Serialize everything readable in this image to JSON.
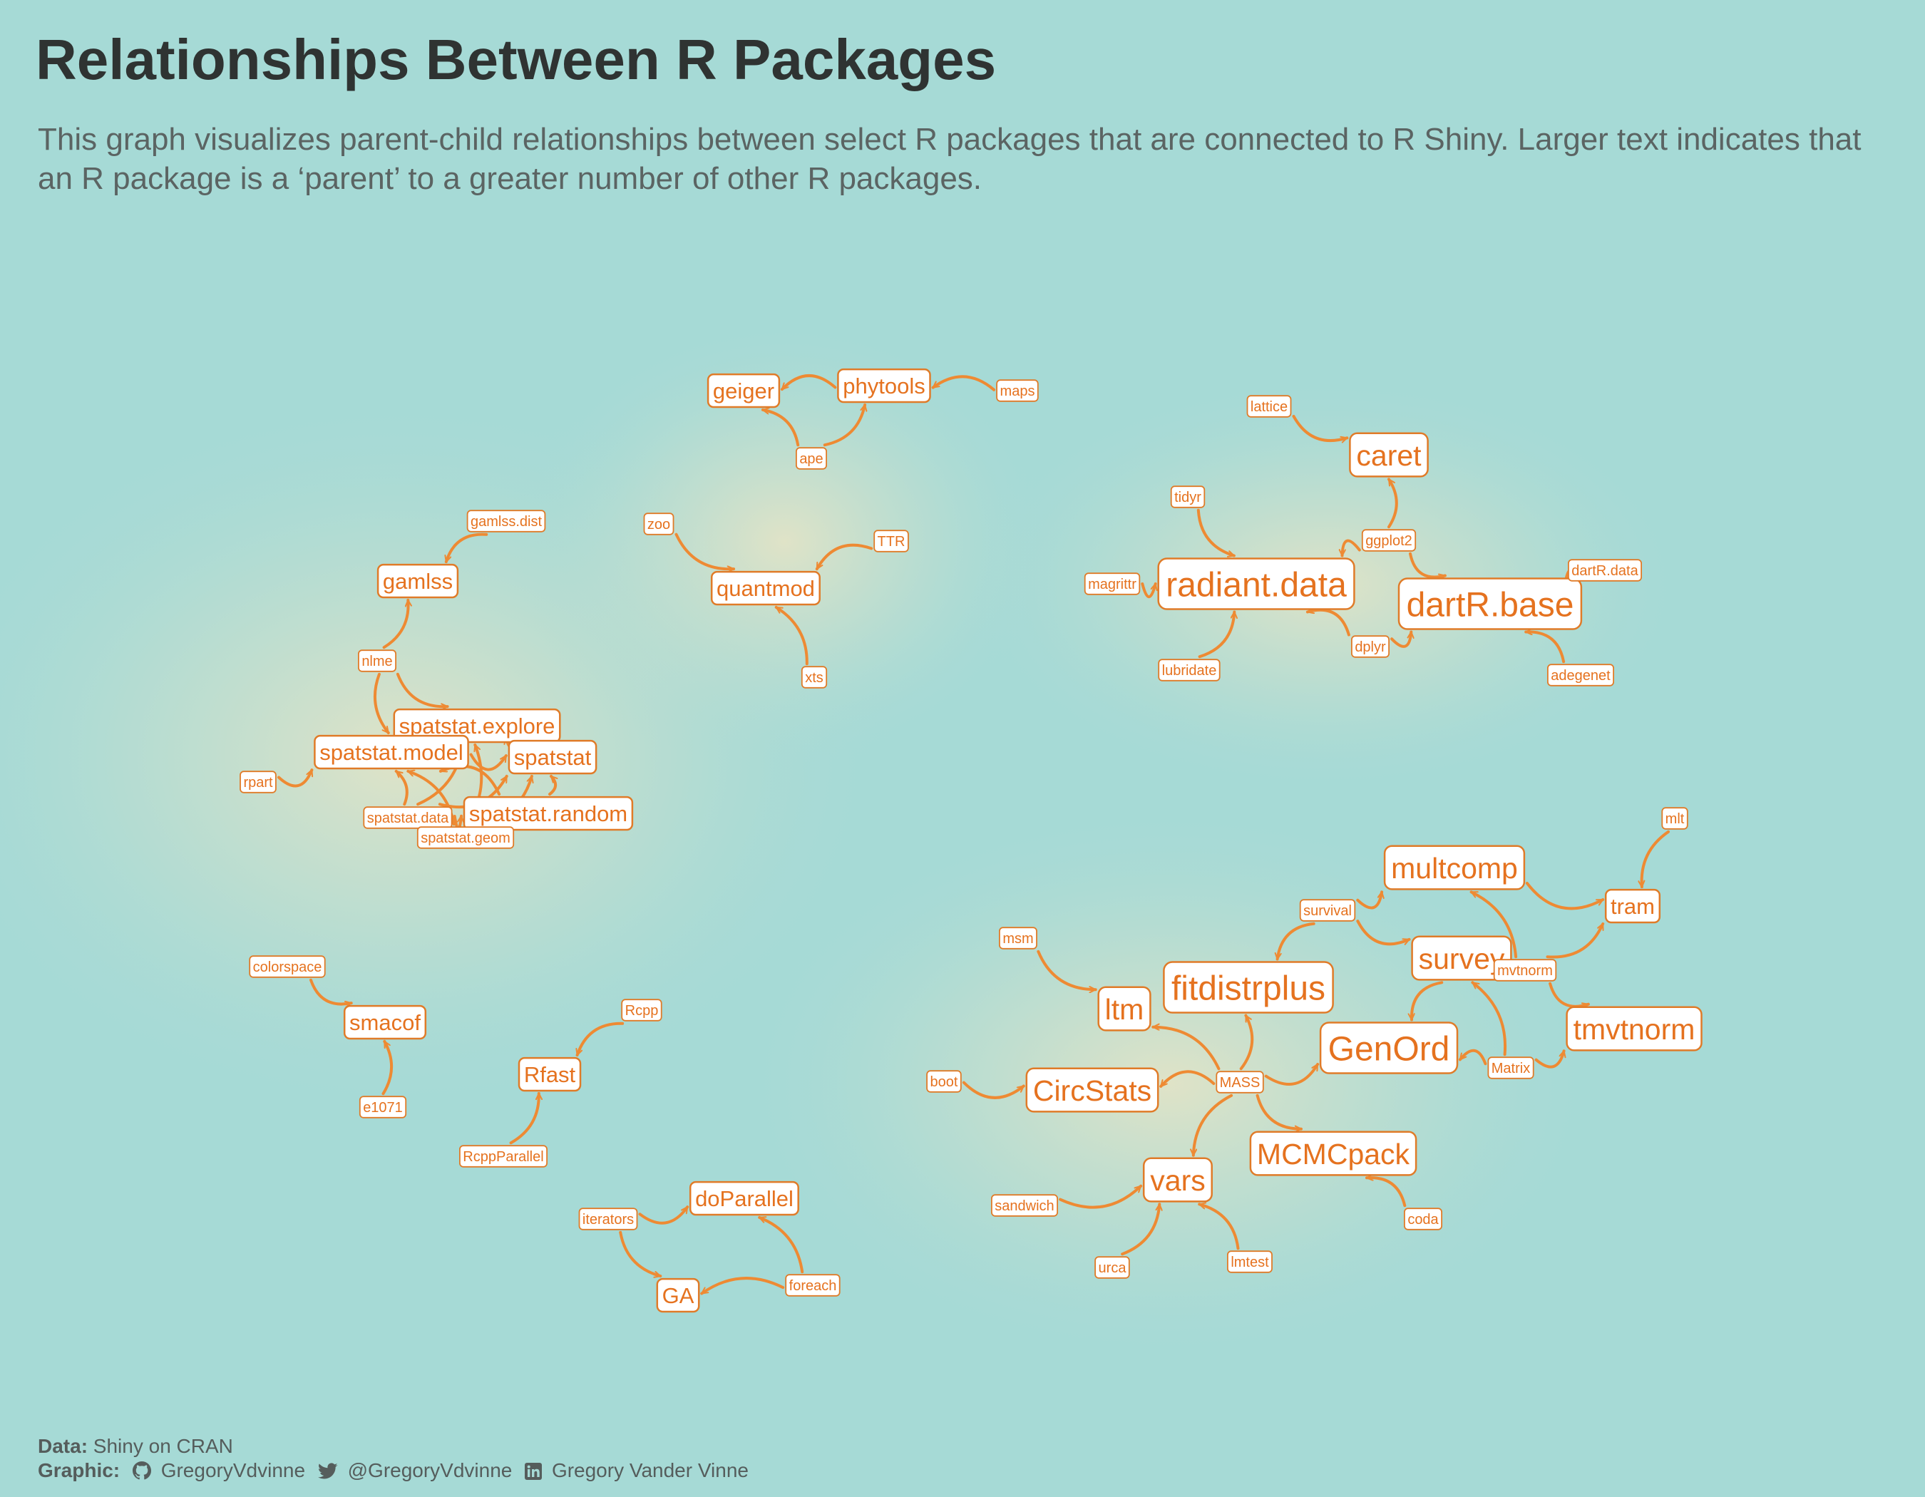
{
  "title": "Relationships Between R Packages",
  "subtitle": "This graph visualizes parent-child relationships between select R packages that are connected to R Shiny. Larger text indicates that an R package is a ‘parent’ to a greater number of other R packages.",
  "caption": {
    "data_label": "Data:",
    "data_value": "Shiny on CRAN",
    "graphic_label": "Graphic:",
    "github_icon": "github-icon",
    "github_handle": "GregoryVdvinne",
    "twitter_icon": "twitter-icon",
    "twitter_handle": "@GregoryVdvinne",
    "linkedin_icon": "linkedin-icon",
    "linkedin_name": "Gregory Vander Vinne"
  },
  "colors": {
    "background": "#a6dad6",
    "glow": "#f3e6c2",
    "edge": "#ee8a33",
    "label_text": "#e5721f",
    "label_border": "#e07b28",
    "label_fill": "#ffffff",
    "title": "#2f3332",
    "subtitle": "#5b6463"
  },
  "nodes": [
    {
      "id": "geiger",
      "label": "geiger",
      "size": "medium"
    },
    {
      "id": "phytools",
      "label": "phytools",
      "size": "medium"
    },
    {
      "id": "maps",
      "label": "maps",
      "size": "small"
    },
    {
      "id": "ape",
      "label": "ape",
      "size": "small"
    },
    {
      "id": "lattice",
      "label": "lattice",
      "size": "small"
    },
    {
      "id": "caret",
      "label": "caret",
      "size": "large"
    },
    {
      "id": "tidyr",
      "label": "tidyr",
      "size": "small"
    },
    {
      "id": "ggplot2",
      "label": "ggplot2",
      "size": "small"
    },
    {
      "id": "magrittr",
      "label": "magrittr",
      "size": "small"
    },
    {
      "id": "radiant_data",
      "label": "radiant.data",
      "size": "xlarge"
    },
    {
      "id": "dartR_base",
      "label": "dartR.base",
      "size": "xlarge"
    },
    {
      "id": "dartR_data",
      "label": "dartR.data",
      "size": "small"
    },
    {
      "id": "lubridate",
      "label": "lubridate",
      "size": "small"
    },
    {
      "id": "dplyr",
      "label": "dplyr",
      "size": "small"
    },
    {
      "id": "adegenet",
      "label": "adegenet",
      "size": "small"
    },
    {
      "id": "gamlss_dist",
      "label": "gamlss.dist",
      "size": "small"
    },
    {
      "id": "gamlss",
      "label": "gamlss",
      "size": "medium"
    },
    {
      "id": "zoo",
      "label": "zoo",
      "size": "small"
    },
    {
      "id": "TTR",
      "label": "TTR",
      "size": "small"
    },
    {
      "id": "quantmod",
      "label": "quantmod",
      "size": "medium"
    },
    {
      "id": "xts",
      "label": "xts",
      "size": "small"
    },
    {
      "id": "nlme",
      "label": "nlme",
      "size": "small"
    },
    {
      "id": "spatstat_explore",
      "label": "spatstat.explore",
      "size": "medium"
    },
    {
      "id": "spatstat_model",
      "label": "spatstat.model",
      "size": "medium"
    },
    {
      "id": "spatstat",
      "label": "spatstat",
      "size": "medium"
    },
    {
      "id": "rpart",
      "label": "rpart",
      "size": "small"
    },
    {
      "id": "spatstat_data",
      "label": "spatstat.data",
      "size": "small"
    },
    {
      "id": "spatstat_random",
      "label": "spatstat.random",
      "size": "medium"
    },
    {
      "id": "spatstat_geom",
      "label": "spatstat.geom",
      "size": "small"
    },
    {
      "id": "mlt",
      "label": "mlt",
      "size": "small"
    },
    {
      "id": "multcomp",
      "label": "multcomp",
      "size": "large"
    },
    {
      "id": "tram",
      "label": "tram",
      "size": "medium"
    },
    {
      "id": "survival",
      "label": "survival",
      "size": "small"
    },
    {
      "id": "msm",
      "label": "msm",
      "size": "small"
    },
    {
      "id": "survey",
      "label": "survey",
      "size": "large"
    },
    {
      "id": "mvtnorm",
      "label": "mvtnorm",
      "size": "small"
    },
    {
      "id": "ltm",
      "label": "ltm",
      "size": "large"
    },
    {
      "id": "fitdistrplus",
      "label": "fitdistrplus",
      "size": "xlarge"
    },
    {
      "id": "tmvtnorm",
      "label": "tmvtnorm",
      "size": "large"
    },
    {
      "id": "GenOrd",
      "label": "GenOrd",
      "size": "xlarge"
    },
    {
      "id": "colorspace",
      "label": "colorspace",
      "size": "small"
    },
    {
      "id": "smacof",
      "label": "smacof",
      "size": "medium"
    },
    {
      "id": "Rcpp",
      "label": "Rcpp",
      "size": "small"
    },
    {
      "id": "Rfast",
      "label": "Rfast",
      "size": "medium"
    },
    {
      "id": "boot",
      "label": "boot",
      "size": "small"
    },
    {
      "id": "CircStats",
      "label": "CircStats",
      "size": "large"
    },
    {
      "id": "MASS",
      "label": "MASS",
      "size": "small"
    },
    {
      "id": "Matrix",
      "label": "Matrix",
      "size": "small"
    },
    {
      "id": "e1071",
      "label": "e1071",
      "size": "small"
    },
    {
      "id": "RcppParallel",
      "label": "RcppParallel",
      "size": "small"
    },
    {
      "id": "MCMCpack",
      "label": "MCMCpack",
      "size": "large"
    },
    {
      "id": "vars",
      "label": "vars",
      "size": "large"
    },
    {
      "id": "sandwich",
      "label": "sandwich",
      "size": "small"
    },
    {
      "id": "coda",
      "label": "coda",
      "size": "small"
    },
    {
      "id": "doParallel",
      "label": "doParallel",
      "size": "medium"
    },
    {
      "id": "iterators",
      "label": "iterators",
      "size": "small"
    },
    {
      "id": "foreach",
      "label": "foreach",
      "size": "small"
    },
    {
      "id": "GA",
      "label": "GA",
      "size": "medium"
    },
    {
      "id": "urca",
      "label": "urca",
      "size": "small"
    },
    {
      "id": "lmtest",
      "label": "lmtest",
      "size": "small"
    }
  ],
  "edges": [
    {
      "from": "phytools",
      "to": "geiger"
    },
    {
      "from": "maps",
      "to": "phytools"
    },
    {
      "from": "ape",
      "to": "geiger"
    },
    {
      "from": "ape",
      "to": "phytools"
    },
    {
      "from": "lattice",
      "to": "caret"
    },
    {
      "from": "ggplot2",
      "to": "caret"
    },
    {
      "from": "ggplot2",
      "to": "radiant_data"
    },
    {
      "from": "ggplot2",
      "to": "dartR_base"
    },
    {
      "from": "tidyr",
      "to": "radiant_data"
    },
    {
      "from": "magrittr",
      "to": "radiant_data"
    },
    {
      "from": "lubridate",
      "to": "radiant_data"
    },
    {
      "from": "dplyr",
      "to": "radiant_data"
    },
    {
      "from": "dplyr",
      "to": "dartR_base"
    },
    {
      "from": "dartR_data",
      "to": "dartR_base"
    },
    {
      "from": "adegenet",
      "to": "dartR_base"
    },
    {
      "from": "gamlss_dist",
      "to": "gamlss"
    },
    {
      "from": "nlme",
      "to": "gamlss"
    },
    {
      "from": "nlme",
      "to": "spatstat_explore"
    },
    {
      "from": "nlme",
      "to": "spatstat_model"
    },
    {
      "from": "zoo",
      "to": "quantmod"
    },
    {
      "from": "TTR",
      "to": "quantmod"
    },
    {
      "from": "xts",
      "to": "quantmod"
    },
    {
      "from": "rpart",
      "to": "spatstat_model"
    },
    {
      "from": "spatstat_data",
      "to": "spatstat_model"
    },
    {
      "from": "spatstat_data",
      "to": "spatstat_explore"
    },
    {
      "from": "spatstat_data",
      "to": "spatstat"
    },
    {
      "from": "spatstat_data",
      "to": "spatstat_random"
    },
    {
      "from": "spatstat_geom",
      "to": "spatstat_model"
    },
    {
      "from": "spatstat_geom",
      "to": "spatstat_explore"
    },
    {
      "from": "spatstat_geom",
      "to": "spatstat"
    },
    {
      "from": "spatstat_geom",
      "to": "spatstat_random"
    },
    {
      "from": "spatstat_explore",
      "to": "spatstat"
    },
    {
      "from": "spatstat_explore",
      "to": "spatstat_model"
    },
    {
      "from": "spatstat_random",
      "to": "spatstat"
    },
    {
      "from": "spatstat_random",
      "to": "spatstat_model"
    },
    {
      "from": "spatstat_model",
      "to": "spatstat"
    },
    {
      "from": "mlt",
      "to": "tram"
    },
    {
      "from": "survival",
      "to": "multcomp"
    },
    {
      "from": "survival",
      "to": "fitdistrplus"
    },
    {
      "from": "survival",
      "to": "survey"
    },
    {
      "from": "multcomp",
      "to": "tram"
    },
    {
      "from": "mvtnorm",
      "to": "tram"
    },
    {
      "from": "mvtnorm",
      "to": "tmvtnorm"
    },
    {
      "from": "mvtnorm",
      "to": "multcomp"
    },
    {
      "from": "msm",
      "to": "ltm"
    },
    {
      "from": "survey",
      "to": "GenOrd"
    },
    {
      "from": "Matrix",
      "to": "survey"
    },
    {
      "from": "Matrix",
      "to": "tmvtnorm"
    },
    {
      "from": "Matrix",
      "to": "GenOrd"
    },
    {
      "from": "MASS",
      "to": "ltm"
    },
    {
      "from": "MASS",
      "to": "fitdistrplus"
    },
    {
      "from": "MASS",
      "to": "vars"
    },
    {
      "from": "MASS",
      "to": "MCMCpack"
    },
    {
      "from": "MASS",
      "to": "GenOrd"
    },
    {
      "from": "MASS",
      "to": "CircStats"
    },
    {
      "from": "boot",
      "to": "CircStats"
    },
    {
      "from": "colorspace",
      "to": "smacof"
    },
    {
      "from": "e1071",
      "to": "smacof"
    },
    {
      "from": "Rcpp",
      "to": "Rfast"
    },
    {
      "from": "RcppParallel",
      "to": "Rfast"
    },
    {
      "from": "sandwich",
      "to": "vars"
    },
    {
      "from": "urca",
      "to": "vars"
    },
    {
      "from": "lmtest",
      "to": "vars"
    },
    {
      "from": "coda",
      "to": "MCMCpack"
    },
    {
      "from": "iterators",
      "to": "doParallel"
    },
    {
      "from": "iterators",
      "to": "GA"
    },
    {
      "from": "foreach",
      "to": "doParallel"
    },
    {
      "from": "foreach",
      "to": "GA"
    }
  ]
}
